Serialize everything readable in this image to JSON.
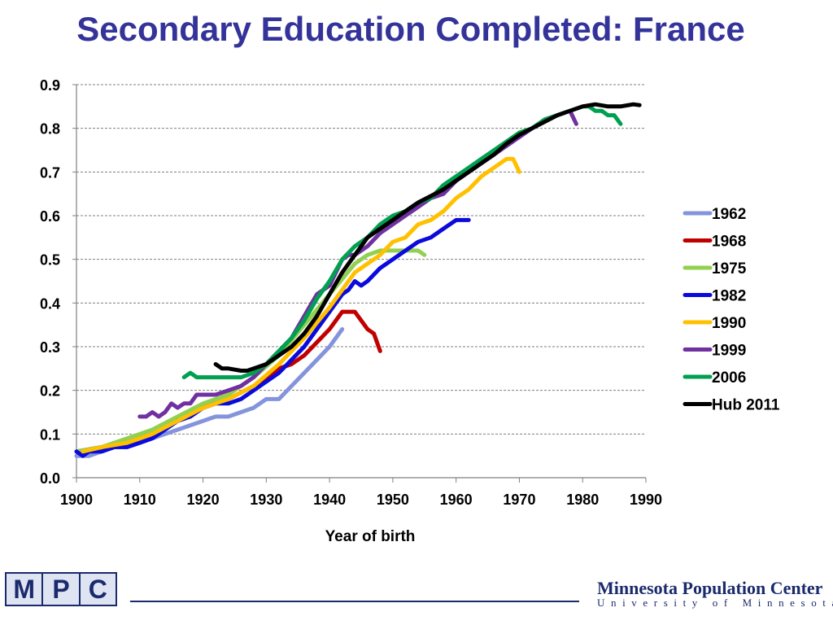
{
  "chart_data": {
    "type": "line",
    "title": "Secondary Education Completed: France",
    "xlabel": "Year of birth",
    "ylabel": "",
    "xlim": [
      1900,
      1990
    ],
    "ylim": [
      0,
      0.9
    ],
    "xticks": [
      1900,
      1910,
      1920,
      1930,
      1940,
      1950,
      1960,
      1970,
      1980,
      1990
    ],
    "xtick_labels": [
      "1900",
      "1910",
      "1920",
      "1930",
      "1940",
      "1950",
      "1960",
      "1970",
      "1980",
      "1990"
    ],
    "yticks": [
      0,
      0.1,
      0.2,
      0.3,
      0.4,
      0.5,
      0.6,
      0.7,
      0.8,
      0.9
    ],
    "ytick_labels": [
      "0.0",
      "0.1",
      "0.2",
      "0.3",
      "0.4",
      "0.5",
      "0.6",
      "0.7",
      "0.8",
      "0.9"
    ],
    "grid": "horizontal dashed",
    "legend_position": "right",
    "series": [
      {
        "name": "1962",
        "color": "#8494dc",
        "x": [
          1900,
          1902,
          1904,
          1906,
          1908,
          1910,
          1912,
          1914,
          1916,
          1918,
          1920,
          1922,
          1924,
          1926,
          1928,
          1930,
          1932,
          1934,
          1936,
          1938,
          1940,
          1942
        ],
        "y": [
          0.05,
          0.05,
          0.06,
          0.07,
          0.07,
          0.08,
          0.09,
          0.1,
          0.11,
          0.12,
          0.13,
          0.14,
          0.14,
          0.15,
          0.16,
          0.18,
          0.18,
          0.21,
          0.24,
          0.27,
          0.3,
          0.34
        ]
      },
      {
        "name": "1968",
        "color": "#c00000",
        "x": [
          1900,
          1904,
          1908,
          1912,
          1916,
          1920,
          1924,
          1928,
          1932,
          1934,
          1936,
          1938,
          1940,
          1942,
          1943,
          1944,
          1946,
          1947,
          1948
        ],
        "y": [
          0.06,
          0.07,
          0.08,
          0.1,
          0.13,
          0.16,
          0.18,
          0.21,
          0.25,
          0.26,
          0.28,
          0.31,
          0.34,
          0.38,
          0.38,
          0.38,
          0.34,
          0.33,
          0.29
        ]
      },
      {
        "name": "1975",
        "color": "#92d050",
        "x": [
          1900,
          1904,
          1908,
          1912,
          1916,
          1920,
          1924,
          1928,
          1932,
          1936,
          1940,
          1944,
          1946,
          1948,
          1950,
          1952,
          1954,
          1955
        ],
        "y": [
          0.06,
          0.07,
          0.09,
          0.11,
          0.14,
          0.17,
          0.19,
          0.23,
          0.28,
          0.35,
          0.42,
          0.49,
          0.51,
          0.52,
          0.52,
          0.52,
          0.52,
          0.51
        ]
      },
      {
        "name": "1982",
        "color": "#0a0adc",
        "x": [
          1900,
          1901,
          1902,
          1904,
          1906,
          1908,
          1910,
          1912,
          1914,
          1916,
          1918,
          1920,
          1922,
          1924,
          1926,
          1928,
          1930,
          1932,
          1934,
          1936,
          1938,
          1940,
          1942,
          1943,
          1944,
          1945,
          1946,
          1948,
          1950,
          1952,
          1954,
          1956,
          1958,
          1960,
          1962
        ],
        "y": [
          0.06,
          0.05,
          0.06,
          0.06,
          0.07,
          0.07,
          0.08,
          0.09,
          0.11,
          0.13,
          0.14,
          0.16,
          0.17,
          0.17,
          0.18,
          0.2,
          0.22,
          0.24,
          0.27,
          0.3,
          0.34,
          0.38,
          0.42,
          0.43,
          0.45,
          0.44,
          0.45,
          0.48,
          0.5,
          0.52,
          0.54,
          0.55,
          0.57,
          0.59,
          0.59
        ]
      },
      {
        "name": "1990",
        "color": "#ffc000",
        "x": [
          1901,
          1904,
          1908,
          1912,
          1916,
          1920,
          1924,
          1928,
          1932,
          1936,
          1940,
          1944,
          1948,
          1950,
          1952,
          1954,
          1956,
          1958,
          1960,
          1962,
          1964,
          1966,
          1968,
          1969,
          1970
        ],
        "y": [
          0.06,
          0.07,
          0.08,
          0.1,
          0.13,
          0.16,
          0.18,
          0.21,
          0.26,
          0.32,
          0.39,
          0.47,
          0.51,
          0.54,
          0.55,
          0.58,
          0.59,
          0.61,
          0.64,
          0.66,
          0.69,
          0.71,
          0.73,
          0.73,
          0.7
        ]
      },
      {
        "name": "1999",
        "color": "#7030a0",
        "x": [
          1910,
          1911,
          1912,
          1913,
          1914,
          1915,
          1916,
          1917,
          1918,
          1919,
          1920,
          1922,
          1924,
          1926,
          1928,
          1930,
          1932,
          1934,
          1936,
          1938,
          1940,
          1942,
          1943,
          1944,
          1946,
          1948,
          1950,
          1952,
          1954,
          1956,
          1958,
          1960,
          1962,
          1964,
          1966,
          1968,
          1970,
          1972,
          1974,
          1976,
          1978,
          1979
        ],
        "y": [
          0.14,
          0.14,
          0.15,
          0.14,
          0.15,
          0.17,
          0.16,
          0.17,
          0.17,
          0.19,
          0.19,
          0.19,
          0.2,
          0.21,
          0.23,
          0.26,
          0.29,
          0.32,
          0.37,
          0.42,
          0.44,
          0.5,
          0.51,
          0.51,
          0.53,
          0.56,
          0.58,
          0.6,
          0.62,
          0.64,
          0.65,
          0.68,
          0.7,
          0.72,
          0.74,
          0.76,
          0.78,
          0.8,
          0.82,
          0.83,
          0.84,
          0.81
        ]
      },
      {
        "name": "2006",
        "color": "#00a050",
        "x": [
          1917,
          1918,
          1919,
          1920,
          1922,
          1924,
          1926,
          1928,
          1930,
          1932,
          1934,
          1936,
          1938,
          1940,
          1942,
          1944,
          1946,
          1948,
          1950,
          1952,
          1954,
          1956,
          1958,
          1960,
          1962,
          1964,
          1966,
          1968,
          1970,
          1972,
          1974,
          1976,
          1978,
          1980,
          1981,
          1982,
          1983,
          1984,
          1985,
          1986
        ],
        "y": [
          0.23,
          0.24,
          0.23,
          0.23,
          0.23,
          0.23,
          0.23,
          0.24,
          0.26,
          0.29,
          0.32,
          0.36,
          0.41,
          0.45,
          0.5,
          0.53,
          0.55,
          0.58,
          0.6,
          0.61,
          0.63,
          0.64,
          0.67,
          0.69,
          0.71,
          0.73,
          0.75,
          0.77,
          0.79,
          0.8,
          0.82,
          0.83,
          0.84,
          0.85,
          0.85,
          0.84,
          0.84,
          0.83,
          0.83,
          0.81
        ]
      },
      {
        "name": "Hub 2011",
        "color": "#000000",
        "x": [
          1922,
          1923,
          1924,
          1926,
          1927,
          1928,
          1930,
          1932,
          1934,
          1936,
          1938,
          1940,
          1942,
          1944,
          1946,
          1948,
          1950,
          1952,
          1954,
          1956,
          1958,
          1960,
          1962,
          1964,
          1966,
          1968,
          1970,
          1972,
          1974,
          1976,
          1978,
          1980,
          1982,
          1984,
          1986,
          1988,
          1989
        ],
        "y": [
          0.26,
          0.25,
          0.25,
          0.245,
          0.245,
          0.25,
          0.26,
          0.28,
          0.3,
          0.33,
          0.37,
          0.42,
          0.47,
          0.51,
          0.55,
          0.57,
          0.59,
          0.61,
          0.63,
          0.645,
          0.66,
          0.68,
          0.7,
          0.72,
          0.74,
          0.765,
          0.785,
          0.8,
          0.815,
          0.83,
          0.84,
          0.85,
          0.855,
          0.85,
          0.85,
          0.855,
          0.853
        ]
      }
    ]
  },
  "footer": {
    "logo_letters": [
      "M",
      "P",
      "C"
    ],
    "org_name": "Minnesota Population Center",
    "org_sub": "University of Minnesota",
    "brand_color": "#1a2a6c"
  }
}
